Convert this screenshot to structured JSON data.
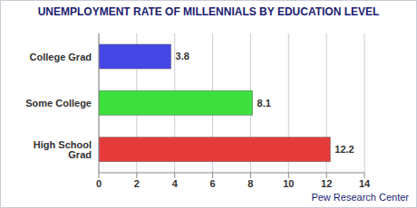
{
  "chart_data": {
    "type": "bar",
    "title": "UNEMPLOYMENT RATE OF MILLENNIALS BY EDUCATION LEVEL",
    "source": "Pew Research Center",
    "orientation": "horizontal",
    "categories": [
      "College Grad",
      "Some College",
      "High School Grad"
    ],
    "values": [
      3.8,
      8.1,
      12.2
    ],
    "colors": [
      "#4646e6",
      "#3ee03e",
      "#e63a3a"
    ],
    "xlim": [
      0,
      14
    ],
    "xticks": [
      0,
      2,
      4,
      6,
      8,
      10,
      12,
      14
    ],
    "grid": true,
    "data_labels": true
  }
}
